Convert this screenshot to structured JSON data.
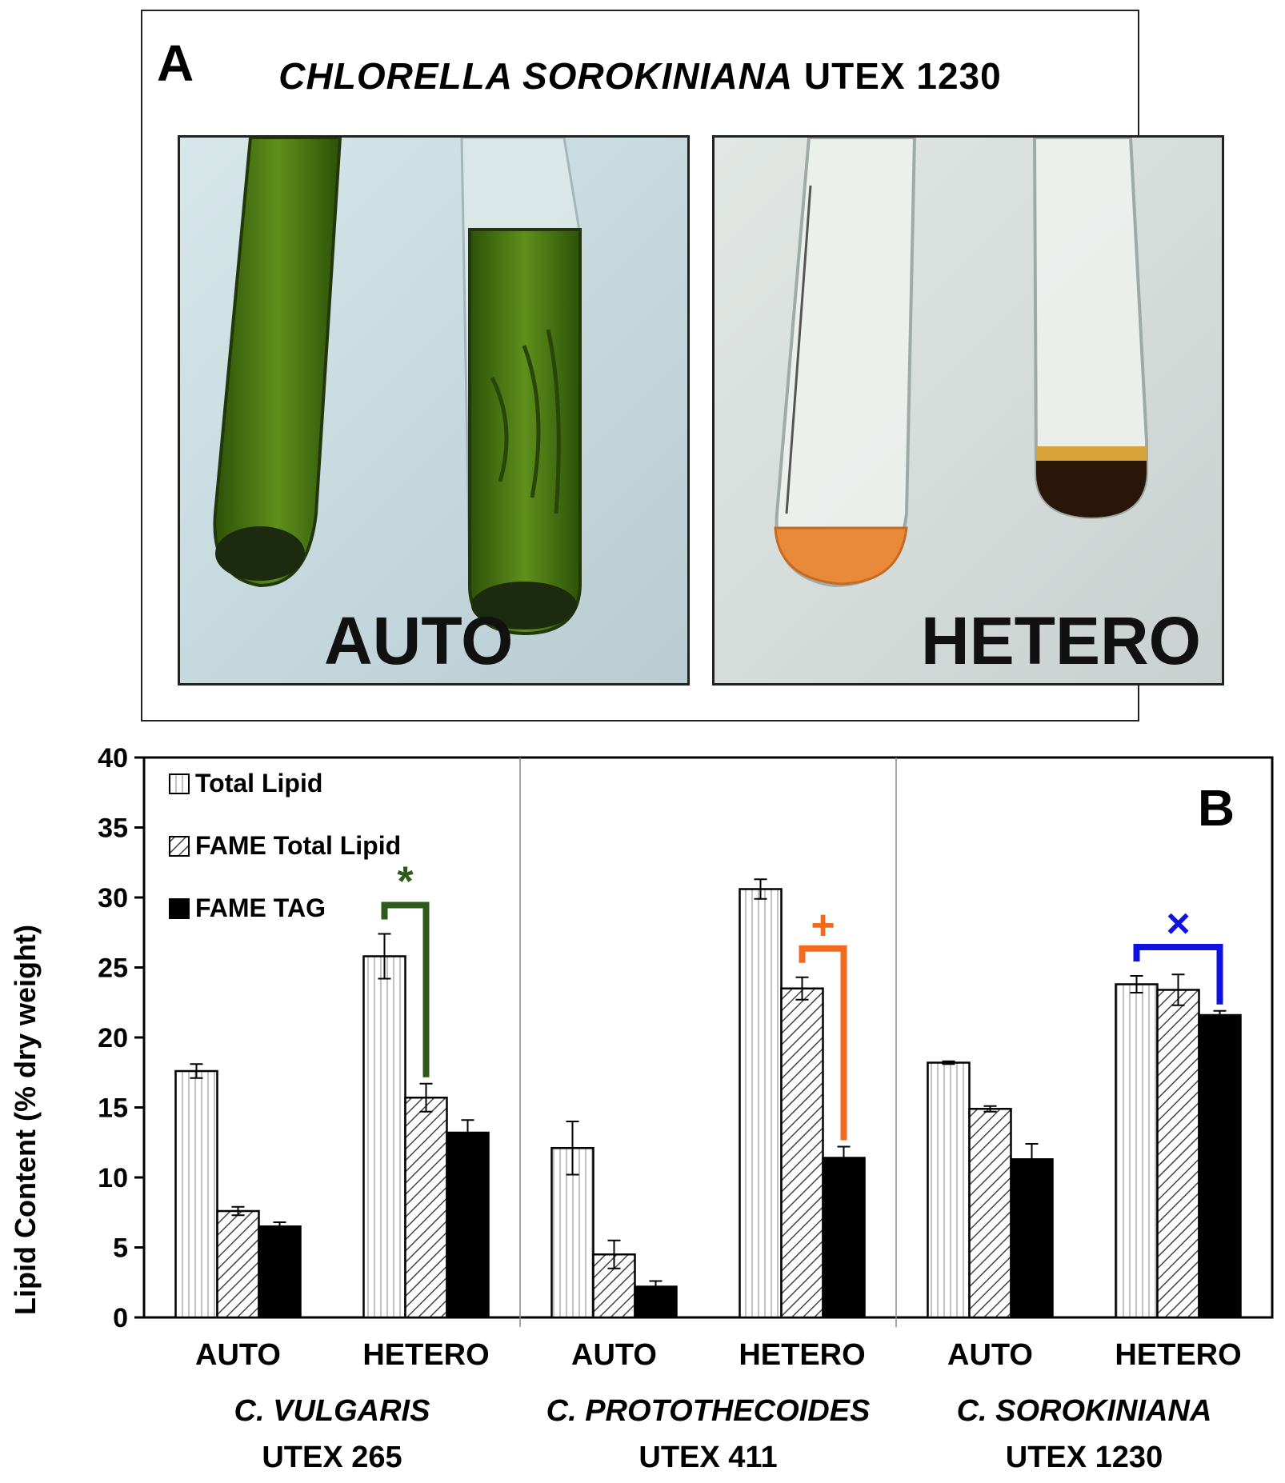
{
  "panel_a": {
    "letter": "A",
    "title_italic": "CHLORELLA SOROKINIANA",
    "title_rest": " UTEX 1230",
    "photos": [
      {
        "label": "AUTO",
        "culture_color": "#3f6b12",
        "pellet_color": "#1c2a10"
      },
      {
        "label": "HETERO",
        "culture_color": "#e98a3a",
        "pellet_color": "#2a1608"
      }
    ]
  },
  "chart_data": {
    "type": "bar",
    "panel_letter": "B",
    "ylabel": "Lipid Content (% dry weight)",
    "ylim": [
      0,
      40
    ],
    "yticks": [
      0,
      5,
      10,
      15,
      20,
      25,
      30,
      35,
      40
    ],
    "grid": false,
    "legend_position": "top-left",
    "categories": [
      "AUTO",
      "HETERO",
      "AUTO",
      "HETERO",
      "AUTO",
      "HETERO"
    ],
    "groups": [
      {
        "line1": "C. VULGARIS",
        "line2": "UTEX 265"
      },
      {
        "line1": "C. PROTOTHECOIDES",
        "line2": "UTEX 411"
      },
      {
        "line1": "C. SOROKINIANA",
        "line2": "UTEX 1230"
      }
    ],
    "series": [
      {
        "name": "Total Lipid",
        "pattern": "vertical-lines",
        "values": [
          17.6,
          25.8,
          12.1,
          30.6,
          18.2,
          23.8
        ],
        "errors": [
          0.5,
          1.6,
          1.9,
          0.7,
          0.1,
          0.6
        ]
      },
      {
        "name": "FAME Total Lipid",
        "pattern": "diagonal-hatch",
        "values": [
          7.6,
          15.7,
          4.5,
          23.5,
          14.9,
          23.4
        ],
        "errors": [
          0.3,
          1.0,
          1.0,
          0.8,
          0.2,
          1.1
        ]
      },
      {
        "name": "FAME TAG",
        "pattern": "solid-black",
        "values": [
          6.5,
          13.2,
          2.2,
          11.4,
          11.3,
          21.6
        ],
        "errors": [
          0.3,
          0.9,
          0.4,
          0.8,
          1.1,
          0.3
        ]
      }
    ],
    "annotations": [
      {
        "symbol": "*",
        "color": "#2e5a1a",
        "category_index": 1,
        "from_series": 0,
        "to_series": 1
      },
      {
        "symbol": "+",
        "color": "#f26b1d",
        "category_index": 3,
        "from_series": 1,
        "to_series": 2
      },
      {
        "symbol": "×",
        "color": "#1010e0",
        "category_index": 5,
        "from_series": 0,
        "to_series": 2
      }
    ]
  }
}
